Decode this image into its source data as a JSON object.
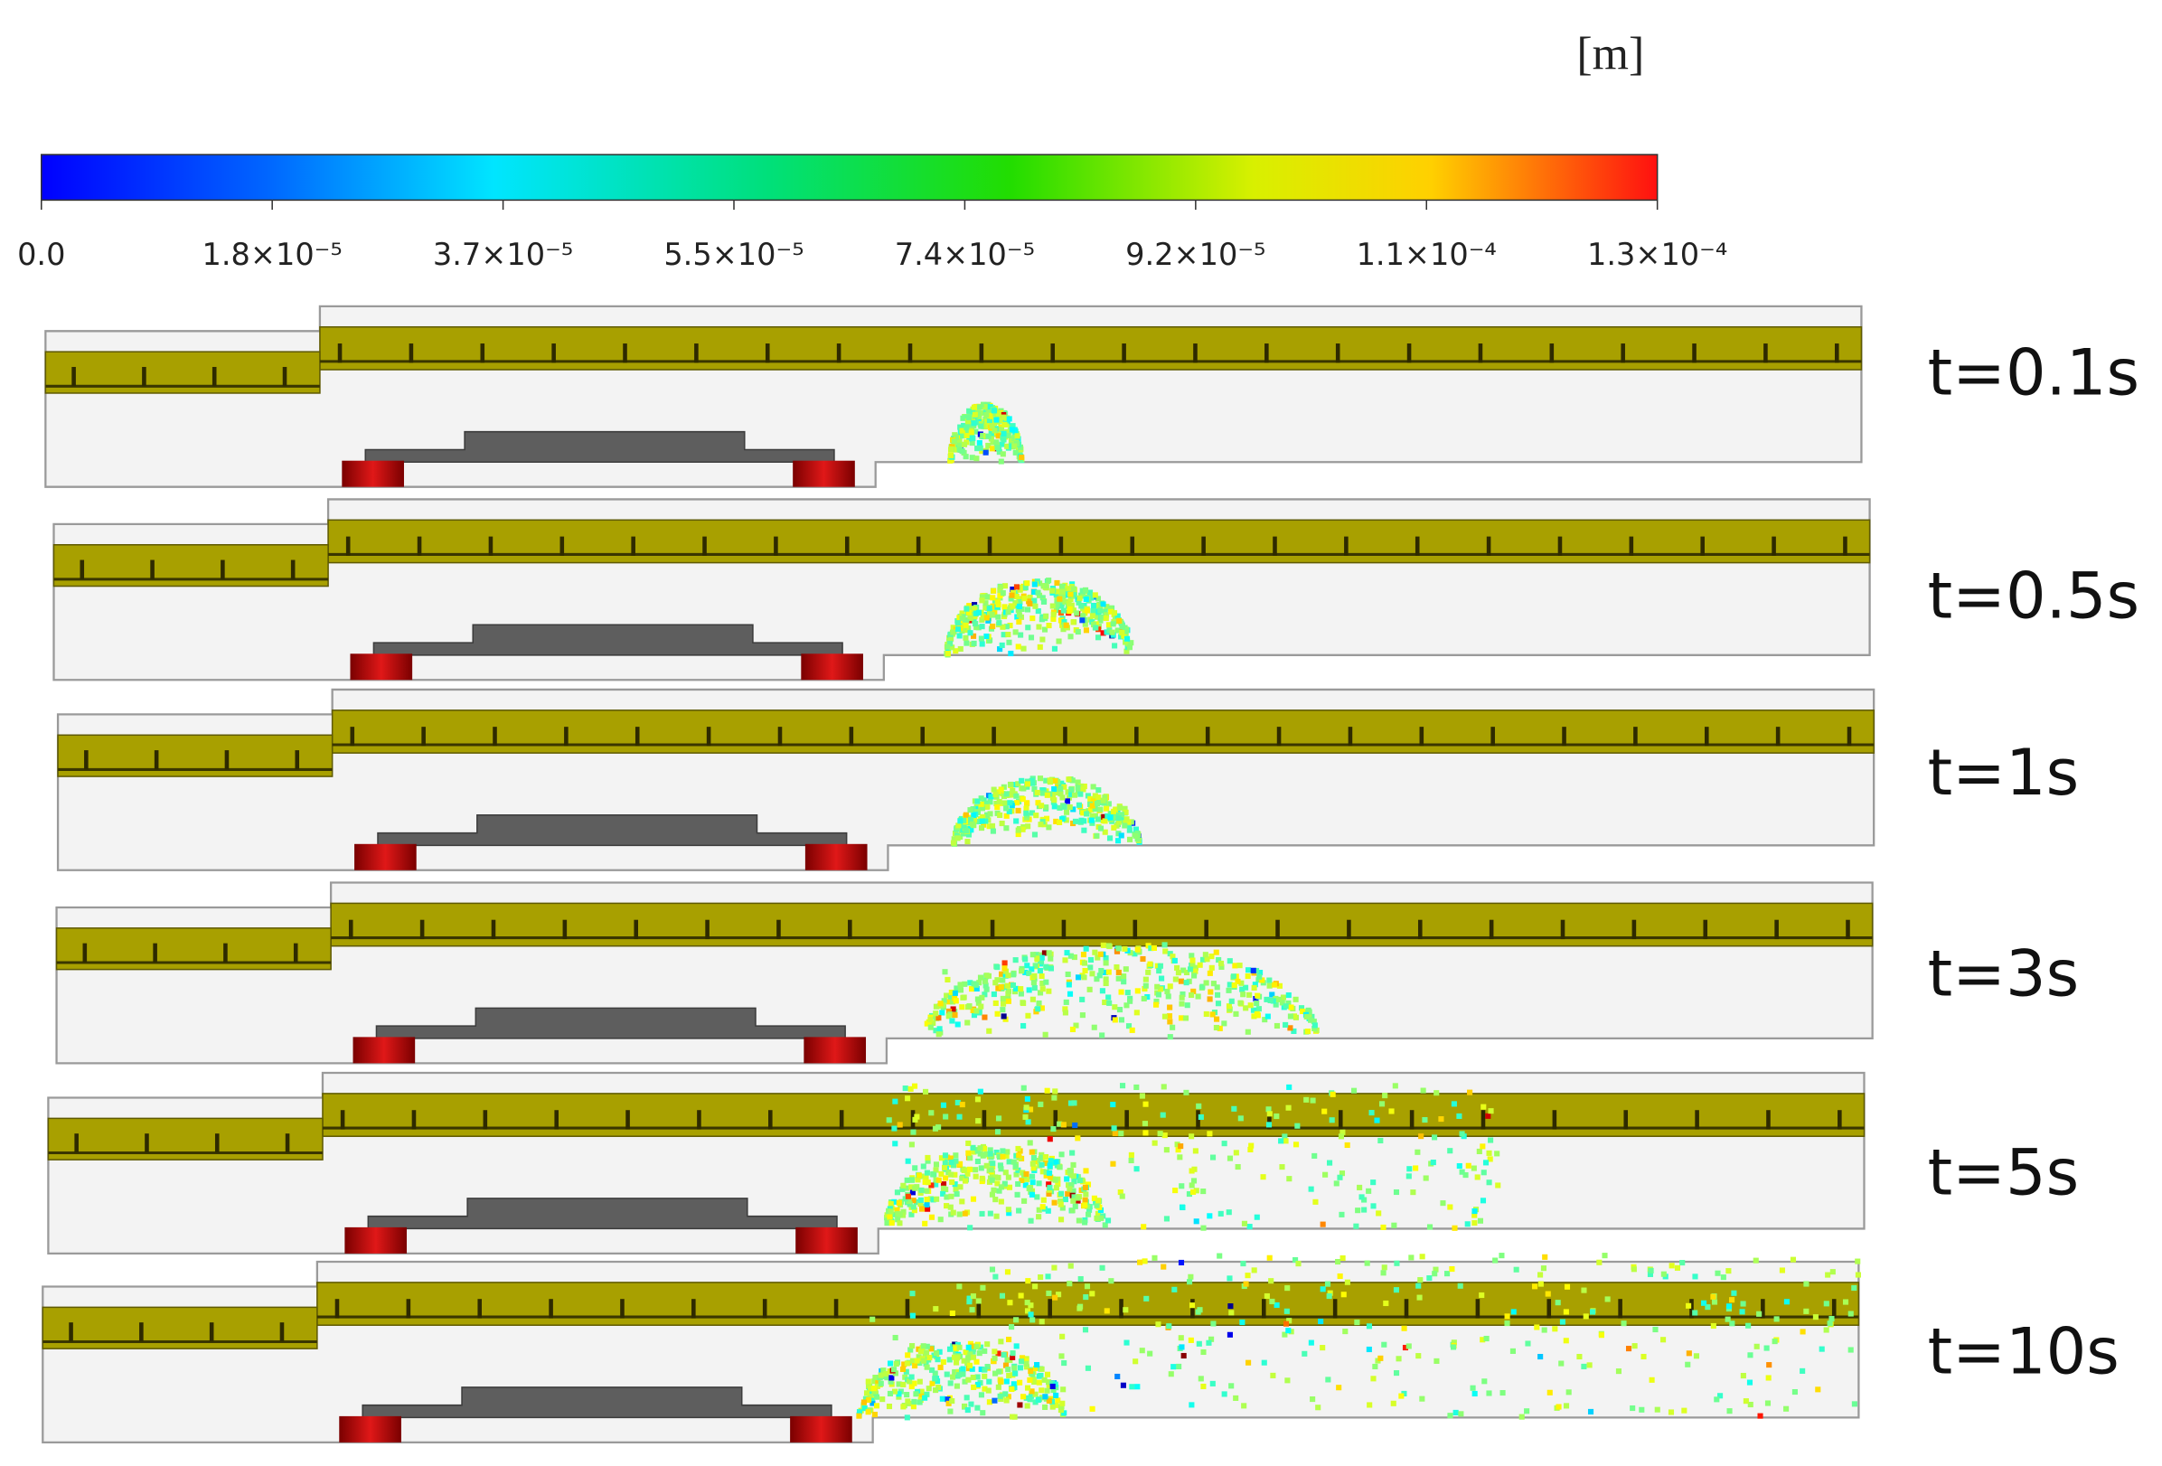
{
  "unit": "[m]",
  "colorbar": {
    "ticks": [
      "0.0",
      "1.8×10⁻⁵",
      "3.7×10⁻⁵",
      "5.5×10⁻⁵",
      "7.4×10⁻⁵",
      "9.2×10⁻⁵",
      "1.1×10⁻⁴",
      "1.3×10⁻⁴"
    ]
  },
  "panels": [
    {
      "label": "t=0.1s"
    },
    {
      "label": "t=0.5s"
    },
    {
      "label": "t=1s"
    },
    {
      "label": "t=3s"
    },
    {
      "label": "t=5s"
    },
    {
      "label": "t=10s"
    }
  ]
}
